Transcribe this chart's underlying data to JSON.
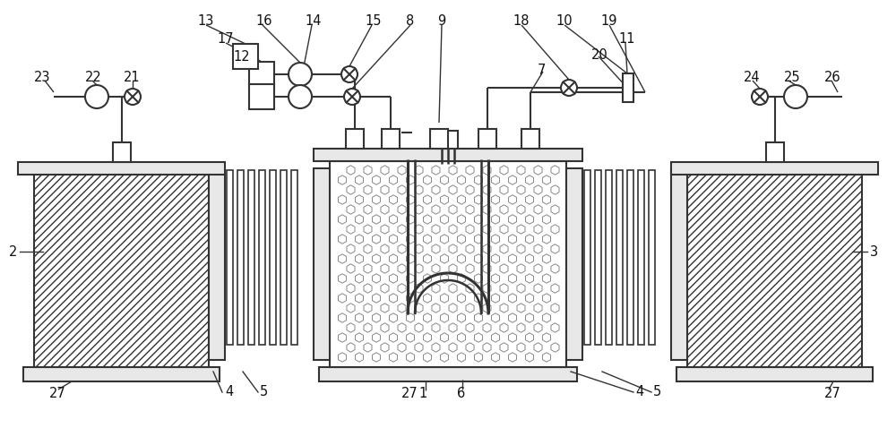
{
  "bg_color": "#ffffff",
  "line_color": "#333333",
  "fig_width": 10.0,
  "fig_height": 4.78
}
